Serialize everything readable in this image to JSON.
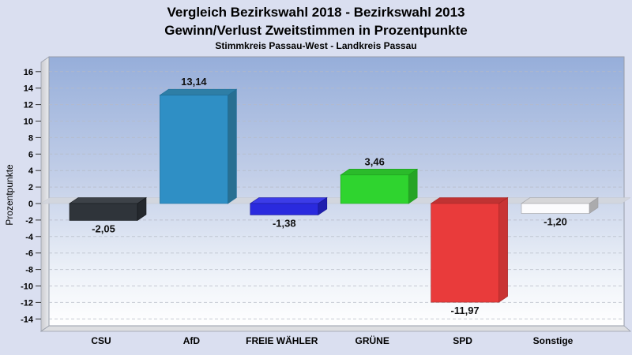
{
  "page": {
    "background": "#dadff0"
  },
  "header": {
    "title": "Vergleich Bezirkswahl 2018 - Bezirkswahl 2013",
    "subtitle": "Gewinn/Verlust Zweitstimmen in Prozentpunkte",
    "caption": "Stimmkreis Passau-West - Landkreis Passau"
  },
  "chart_data": {
    "type": "bar",
    "style": "3d-column",
    "title": "Vergleich Bezirkswahl 2018 - Bezirkswahl 2013",
    "subtitle": "Gewinn/Verlust Zweitstimmen in Prozentpunkte",
    "caption": "Stimmkreis Passau-West - Landkreis Passau",
    "xlabel": "",
    "ylabel": "Prozentpunkte",
    "ylim": [
      -15,
      17.8
    ],
    "ytick_step": 2,
    "yticks": [
      16,
      14,
      12,
      10,
      8,
      6,
      4,
      2,
      0,
      -2,
      -4,
      -6,
      -8,
      -10,
      -12,
      -14
    ],
    "grid": "horizontal-dashed",
    "legend": "none",
    "categories": [
      "CSU",
      "AfD",
      "FREIE WÄHLER",
      "GRÜNE",
      "SPD",
      "Sonstige"
    ],
    "values": [
      -2.05,
      13.14,
      -1.38,
      3.46,
      -11.97,
      -1.2
    ],
    "value_labels": [
      "-2,05",
      "13,14",
      "-1,38",
      "3,46",
      "-11,97",
      "-1,20"
    ],
    "bar_colors": [
      {
        "name": "CSU",
        "front": "#2f343a",
        "top": "#3d4248",
        "side": "#24282d",
        "edge": "#15181c"
      },
      {
        "name": "AfD",
        "front": "#2f8fc5",
        "top": "#2e7ea6",
        "side": "#286f92",
        "edge": "#1e6d99"
      },
      {
        "name": "FREIE WÄHLER",
        "front": "#2a2ade",
        "top": "#3c3ce8",
        "side": "#1f1fae",
        "edge": "#161696"
      },
      {
        "name": "GRÜNE",
        "front": "#2fd42f",
        "top": "#2bbb2b",
        "side": "#26a426",
        "edge": "#1d9e1d"
      },
      {
        "name": "SPD",
        "front": "#e93b3b",
        "top": "#c03333",
        "side": "#c93434",
        "edge": "#a32626"
      },
      {
        "name": "Sonstige",
        "front": "#fbfbfd",
        "top": "#d6d6d8",
        "side": "#ababad",
        "edge": "#9c9ca0"
      }
    ],
    "colors": {
      "plot_gradient_top": "#96aeda",
      "plot_gradient_bottom": "#ffffff",
      "gridline": "#b6bbc6",
      "zero_plane": "#d3d6dd",
      "wall": "#d9dadd",
      "floor": "#dddee1",
      "frame": "#989eaa"
    }
  }
}
